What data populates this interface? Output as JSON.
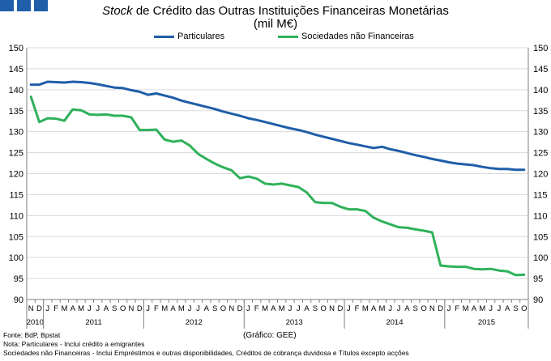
{
  "header": {
    "title_italic": "Stock",
    "title_rest": " de Crédito das Outras Instituições Financeiras Monetárias",
    "subtitle": "(mil M€)"
  },
  "colors": {
    "particulares": "#1f5ea8",
    "sociedades": "#2fb15a",
    "logo": "#1f5ea8"
  },
  "footer": {
    "source": "Fonte: BdP, Bpstat",
    "note1": "Nota: Particulares - Inclui crédito a emigrantes",
    "note2": "Sociedades não Financeiras - Inclui Empréstimos e outras disponibilidades, Créditos de cobrança duvidosa e Títulos excepto acções",
    "credit": "(Gráfico: GEE)"
  },
  "chart_data": {
    "type": "line",
    "title": "Stock de Crédito das Outras Instituições Financeiras Monetárias",
    "subtitle": "(mil M€)",
    "ylim": [
      90,
      150
    ],
    "yticks": [
      90,
      95,
      100,
      105,
      110,
      115,
      120,
      125,
      130,
      135,
      140,
      145,
      150
    ],
    "legend_position": "top",
    "x_labels": [
      "N",
      "D",
      "J",
      "F",
      "M",
      "A",
      "M",
      "J",
      "J",
      "A",
      "S",
      "O",
      "N",
      "D",
      "J",
      "F",
      "M",
      "A",
      "M",
      "J",
      "J",
      "A",
      "S",
      "O",
      "N",
      "D",
      "J",
      "F",
      "M",
      "A",
      "M",
      "J",
      "J",
      "A",
      "S",
      "O",
      "N",
      "D",
      "J",
      "F",
      "M",
      "A",
      "M",
      "J",
      "J",
      "A",
      "S",
      "O",
      "N",
      "D",
      "J",
      "F",
      "M",
      "A",
      "M",
      "J",
      "J",
      "A",
      "S",
      "O"
    ],
    "years": [
      {
        "label": "2010",
        "start": 0,
        "end": 1
      },
      {
        "label": "2011",
        "start": 2,
        "end": 13
      },
      {
        "label": "2012",
        "start": 14,
        "end": 25
      },
      {
        "label": "2013",
        "start": 26,
        "end": 37
      },
      {
        "label": "2014",
        "start": 38,
        "end": 49
      },
      {
        "label": "2015",
        "start": 50,
        "end": 59
      }
    ],
    "series": [
      {
        "name": "Particulares",
        "values": [
          141.2,
          141.2,
          141.9,
          141.8,
          141.7,
          141.9,
          141.8,
          141.6,
          141.3,
          140.9,
          140.5,
          140.4,
          139.9,
          139.5,
          138.8,
          139.1,
          138.6,
          138.1,
          137.4,
          136.9,
          136.4,
          135.9,
          135.4,
          134.8,
          134.3,
          133.8,
          133.2,
          132.8,
          132.3,
          131.8,
          131.3,
          130.8,
          130.4,
          129.9,
          129.3,
          128.8,
          128.3,
          127.8,
          127.3,
          126.9,
          126.5,
          126.1,
          126.4,
          125.8,
          125.4,
          124.9,
          124.4,
          124.0,
          123.5,
          123.1,
          122.7,
          122.4,
          122.2,
          122.0,
          121.6,
          121.3,
          121.1,
          121.1,
          120.9,
          120.9
        ]
      },
      {
        "name": "Sociedades não Financeiras",
        "values": [
          138.3,
          132.3,
          133.2,
          133.1,
          132.6,
          135.3,
          135.1,
          134.1,
          134.0,
          134.1,
          133.8,
          133.8,
          133.4,
          130.4,
          130.4,
          130.5,
          128.1,
          127.6,
          127.9,
          126.7,
          124.7,
          123.5,
          122.4,
          121.5,
          120.8,
          118.9,
          119.3,
          118.8,
          117.6,
          117.4,
          117.6,
          117.2,
          116.8,
          115.5,
          113.2,
          113.0,
          113.0,
          112.1,
          111.5,
          111.5,
          111.1,
          109.5,
          108.6,
          107.9,
          107.2,
          107.1,
          106.7,
          106.4,
          106.0,
          98.1,
          97.9,
          97.8,
          97.8,
          97.3,
          97.2,
          97.3,
          96.9,
          96.7,
          95.8,
          95.9
        ]
      }
    ]
  }
}
